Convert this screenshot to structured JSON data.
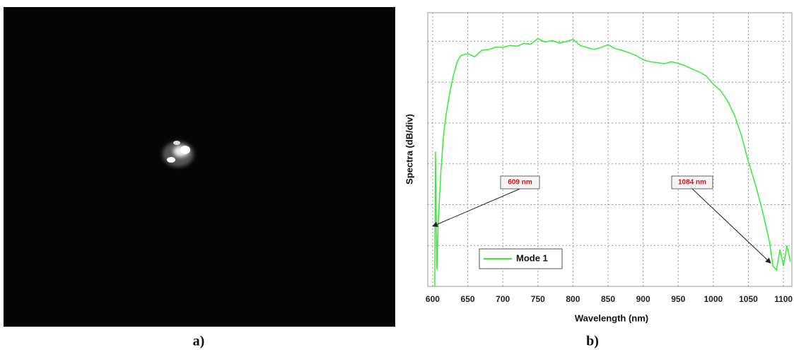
{
  "panel_labels": [
    "a)",
    "b)"
  ],
  "chart_data": {
    "type": "line",
    "x_label": "Wavelength (nm)",
    "y_label": "Spectra (dB/div)",
    "x": [
      603,
      604,
      606,
      608,
      612,
      616,
      620,
      625,
      630,
      635,
      640,
      650,
      660,
      670,
      680,
      690,
      700,
      710,
      720,
      730,
      740,
      750,
      760,
      770,
      780,
      790,
      800,
      810,
      820,
      830,
      840,
      850,
      860,
      870,
      880,
      890,
      900,
      910,
      920,
      930,
      940,
      950,
      960,
      970,
      980,
      990,
      1000,
      1010,
      1020,
      1030,
      1040,
      1050,
      1060,
      1070,
      1080,
      1085,
      1090,
      1095,
      1100,
      1105,
      1110
    ],
    "series": [
      {
        "name": "Mode 1",
        "color": "#33ee33",
        "values": [
          0,
          3.3,
          0.4,
          1.6,
          2.9,
          3.8,
          4.3,
          4.8,
          5.2,
          5.5,
          5.65,
          5.7,
          5.62,
          5.78,
          5.8,
          5.86,
          5.85,
          5.9,
          5.88,
          5.95,
          5.93,
          6.07,
          5.98,
          6.02,
          5.96,
          5.99,
          6.05,
          5.9,
          5.85,
          5.8,
          5.85,
          5.92,
          5.82,
          5.78,
          5.72,
          5.65,
          5.55,
          5.5,
          5.48,
          5.45,
          5.5,
          5.46,
          5.4,
          5.32,
          5.25,
          5.15,
          4.95,
          4.8,
          4.55,
          4.2,
          3.7,
          3.05,
          2.5,
          1.85,
          1.1,
          0.5,
          0.4,
          0.9,
          0.5,
          1.0,
          0.6
        ]
      }
    ],
    "xlim": [
      593,
      1112
    ],
    "xticks": [
      600,
      650,
      700,
      750,
      800,
      850,
      900,
      950,
      1000,
      1050,
      1100
    ],
    "ylim": [
      0,
      6.7
    ],
    "yticks": [
      1,
      2,
      3,
      4,
      5,
      6
    ],
    "grid": true,
    "legend": "lower left",
    "annotations": [
      "609 nm",
      "1084 nm"
    ]
  }
}
